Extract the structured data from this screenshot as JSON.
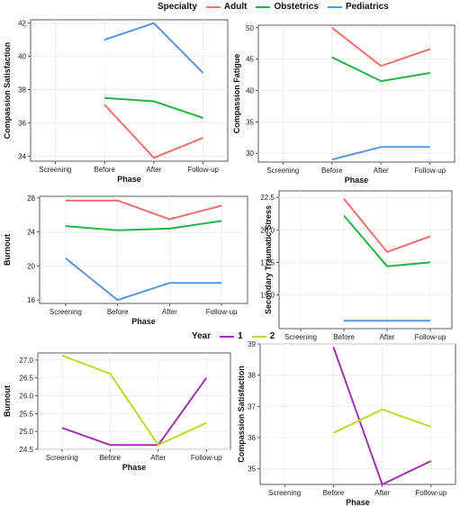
{
  "legend_specialty": {
    "title": "Specialty",
    "entries": [
      {
        "label": "Adult",
        "color": "#ee7070"
      },
      {
        "label": "Obstetrics",
        "color": "#22b34a"
      },
      {
        "label": "Pediatrics",
        "color": "#5b95e0"
      }
    ]
  },
  "legend_year": {
    "title": "Year",
    "entries": [
      {
        "label": "1",
        "color": "#9b35a6"
      },
      {
        "label": "2",
        "color": "#b8dc2a"
      }
    ]
  },
  "chart_data": [
    {
      "type": "line",
      "xlabel": "Phase",
      "ylabel": "Compassion Satisfaction",
      "categories": [
        "Screening",
        "Before",
        "After",
        "Follow-up"
      ],
      "ylim": [
        33.7,
        42.2
      ],
      "yticks": [
        34,
        36,
        38,
        40,
        42
      ],
      "tick_labels": [
        "34",
        "36",
        "38",
        "40",
        "42"
      ],
      "series": [
        {
          "name": "Adult",
          "color": "#ee7070",
          "values": [
            null,
            37.1,
            33.9,
            35.1
          ]
        },
        {
          "name": "Obstetrics",
          "color": "#22b34a",
          "values": [
            null,
            37.5,
            37.3,
            36.3
          ]
        },
        {
          "name": "Pediatrics",
          "color": "#5b95e0",
          "values": [
            null,
            41.0,
            42.0,
            39.0
          ]
        }
      ]
    },
    {
      "type": "line",
      "xlabel": "Phase",
      "ylabel": "Compassion Fatigue",
      "categories": [
        "Screening",
        "Before",
        "After",
        "Follow-up"
      ],
      "ylim": [
        28.6,
        50.4
      ],
      "yticks": [
        30,
        35,
        40,
        45,
        50
      ],
      "tick_labels": [
        "30",
        "35",
        "40",
        "45",
        "50"
      ],
      "series": [
        {
          "name": "Adult",
          "color": "#ee7070",
          "values": [
            null,
            50.0,
            43.9,
            46.6
          ]
        },
        {
          "name": "Obstetrics",
          "color": "#22b34a",
          "values": [
            null,
            45.3,
            41.5,
            42.8
          ]
        },
        {
          "name": "Pediatrics",
          "color": "#5b95e0",
          "values": [
            null,
            29.0,
            31.0,
            31.0
          ]
        }
      ]
    },
    {
      "type": "line",
      "xlabel": "Phase",
      "ylabel": "Burnout",
      "categories": [
        "Screening",
        "Before",
        "After",
        "Follow-up"
      ],
      "ylim": [
        15.6,
        28.2
      ],
      "yticks": [
        16,
        20,
        24,
        28
      ],
      "tick_labels": [
        "16",
        "20",
        "24",
        "28"
      ],
      "series": [
        {
          "name": "Adult",
          "color": "#ee7070",
          "values": [
            27.7,
            27.7,
            25.5,
            27.1
          ]
        },
        {
          "name": "Obstetrics",
          "color": "#22b34a",
          "values": [
            24.7,
            24.2,
            24.4,
            25.3
          ]
        },
        {
          "name": "Pediatrics",
          "color": "#5b95e0",
          "values": [
            20.9,
            16.0,
            18.0,
            18.0
          ]
        }
      ]
    },
    {
      "type": "line",
      "xlabel": "Phase",
      "ylabel": "Secondary Traumatic Stress",
      "categories": [
        "Screening",
        "Before",
        "After",
        "Follow-up"
      ],
      "ylim": [
        12.4,
        23.0
      ],
      "yticks": [
        15.0,
        17.5,
        20.0,
        22.5
      ],
      "tick_labels": [
        "15.0",
        "17.5",
        "20.0",
        "22.5"
      ],
      "series": [
        {
          "name": "Adult",
          "color": "#ee7070",
          "values": [
            null,
            22.4,
            18.3,
            19.5
          ]
        },
        {
          "name": "Obstetrics",
          "color": "#22b34a",
          "values": [
            null,
            21.1,
            17.2,
            17.5
          ]
        },
        {
          "name": "Pediatrics",
          "color": "#5b95e0",
          "values": [
            null,
            13.0,
            13.0,
            13.0
          ]
        }
      ]
    },
    {
      "type": "line",
      "xlabel": "Phase",
      "ylabel": "Burnout",
      "categories": [
        "Screening",
        "Before",
        "After",
        "Follow-up"
      ],
      "ylim": [
        24.5,
        27.2
      ],
      "yticks": [
        24.5,
        25.0,
        25.5,
        26.0,
        26.5,
        27.0
      ],
      "tick_labels": [
        "24.5",
        "25.0",
        "25.5",
        "26.0",
        "26.5",
        "27.0"
      ],
      "series": [
        {
          "name": "1",
          "color": "#9b35a6",
          "values": [
            25.1,
            24.62,
            24.62,
            26.5
          ]
        },
        {
          "name": "2",
          "color": "#b8dc2a",
          "values": [
            27.13,
            26.62,
            24.62,
            25.24
          ]
        }
      ]
    },
    {
      "type": "line",
      "xlabel": "Phase",
      "ylabel": "Compassion Satisfaction",
      "categories": [
        "Screening",
        "Before",
        "After",
        "Follow-up"
      ],
      "ylim": [
        34.5,
        39.0
      ],
      "yticks": [
        35,
        36,
        37,
        38,
        39
      ],
      "tick_labels": [
        "35",
        "36",
        "37",
        "38",
        "39"
      ],
      "series": [
        {
          "name": "1",
          "color": "#9b35a6",
          "values": [
            null,
            38.9,
            34.5,
            35.25
          ]
        },
        {
          "name": "2",
          "color": "#b8dc2a",
          "values": [
            null,
            36.15,
            36.9,
            36.35
          ]
        }
      ]
    }
  ]
}
